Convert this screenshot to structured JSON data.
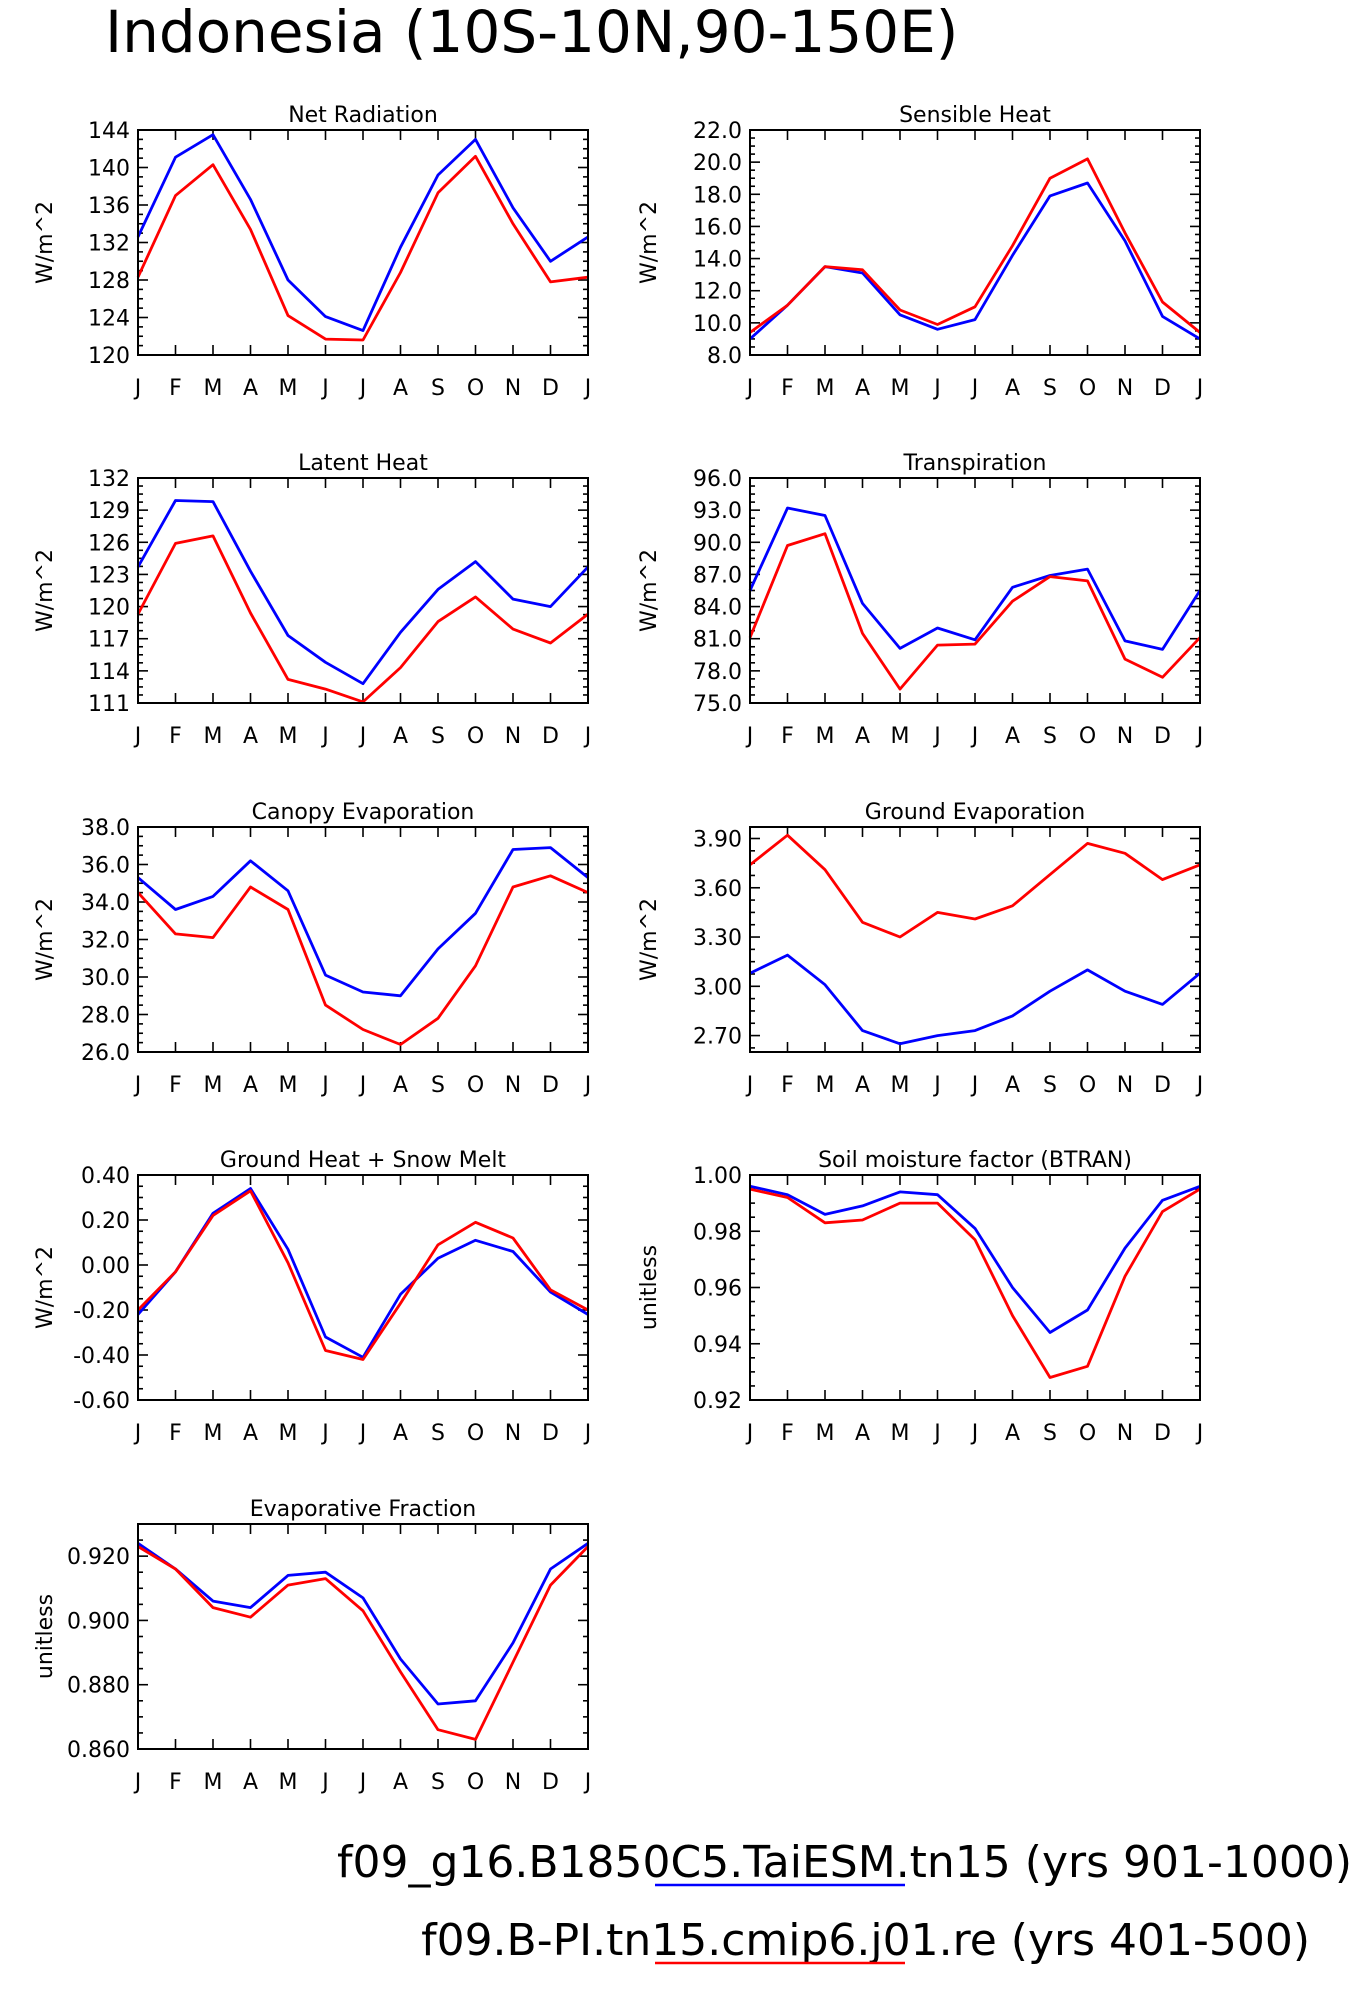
{
  "title": "Indonesia (10S-10N,90-150E)",
  "colors": {
    "blue": "#0000ff",
    "red": "#ff0000"
  },
  "legend": [
    {
      "text": "f09_g16.B1850C5.TaiESM.tn15 (yrs 901-1000)",
      "color": "#0000ff"
    },
    {
      "text": "f09.B-PI.tn15.cmip6.j01.re (yrs 401-500)",
      "color": "#ff0000"
    }
  ],
  "chart_data": [
    {
      "type": "line",
      "title": "Net Radiation",
      "ylabel": "W/m^2",
      "categories": [
        "J",
        "F",
        "M",
        "A",
        "M",
        "J",
        "J",
        "A",
        "S",
        "O",
        "N",
        "D",
        "J"
      ],
      "ylim": [
        120,
        144
      ],
      "yticks": [
        "120",
        "124",
        "128",
        "132",
        "136",
        "140",
        "144"
      ],
      "series": [
        {
          "color": "#0000ff",
          "values": [
            132.6,
            141.1,
            143.5,
            136.6,
            128.0,
            124.1,
            122.6,
            131.5,
            139.2,
            143.0,
            135.7,
            130.0,
            132.6
          ]
        },
        {
          "color": "#ff0000",
          "values": [
            128.3,
            137.0,
            140.3,
            133.4,
            124.2,
            121.7,
            121.6,
            128.8,
            137.3,
            141.2,
            134.0,
            127.8,
            128.3
          ]
        }
      ]
    },
    {
      "type": "line",
      "title": "Sensible Heat",
      "ylabel": "W/m^2",
      "categories": [
        "J",
        "F",
        "M",
        "A",
        "M",
        "J",
        "J",
        "A",
        "S",
        "O",
        "N",
        "D",
        "J"
      ],
      "ylim": [
        8.0,
        22.0
      ],
      "yticks": [
        "8.0",
        "10.0",
        "12.0",
        "14.0",
        "16.0",
        "18.0",
        "20.0",
        "22.0"
      ],
      "series": [
        {
          "color": "#0000ff",
          "values": [
            9.0,
            11.1,
            13.5,
            13.1,
            10.5,
            9.6,
            10.2,
            14.2,
            17.9,
            18.7,
            15.1,
            10.4,
            9.0
          ]
        },
        {
          "color": "#ff0000",
          "values": [
            9.4,
            11.1,
            13.5,
            13.3,
            10.8,
            9.9,
            11.0,
            14.8,
            19.0,
            20.2,
            15.6,
            11.3,
            9.4
          ]
        }
      ]
    },
    {
      "type": "line",
      "title": "Latent Heat",
      "ylabel": "W/m^2",
      "categories": [
        "J",
        "F",
        "M",
        "A",
        "M",
        "J",
        "J",
        "A",
        "S",
        "O",
        "N",
        "D",
        "J"
      ],
      "ylim": [
        111,
        132
      ],
      "yticks": [
        "111",
        "114",
        "117",
        "120",
        "123",
        "126",
        "129",
        "132"
      ],
      "series": [
        {
          "color": "#0000ff",
          "values": [
            123.7,
            129.9,
            129.8,
            123.3,
            117.3,
            114.8,
            112.8,
            117.6,
            121.6,
            124.2,
            120.7,
            120.0,
            123.7
          ]
        },
        {
          "color": "#ff0000",
          "values": [
            119.3,
            125.9,
            126.6,
            119.4,
            113.2,
            112.3,
            111.1,
            114.3,
            118.6,
            120.9,
            117.9,
            116.6,
            119.3
          ]
        }
      ]
    },
    {
      "type": "line",
      "title": "Transpiration",
      "ylabel": "W/m^2",
      "categories": [
        "J",
        "F",
        "M",
        "A",
        "M",
        "J",
        "J",
        "A",
        "S",
        "O",
        "N",
        "D",
        "J"
      ],
      "ylim": [
        75.0,
        96.0
      ],
      "yticks": [
        "75.0",
        "78.0",
        "81.0",
        "84.0",
        "87.0",
        "90.0",
        "93.0",
        "96.0"
      ],
      "series": [
        {
          "color": "#0000ff",
          "values": [
            85.5,
            93.2,
            92.5,
            84.3,
            80.1,
            82.0,
            80.9,
            85.8,
            86.9,
            87.5,
            80.8,
            80.0,
            85.5
          ]
        },
        {
          "color": "#ff0000",
          "values": [
            81.1,
            89.7,
            90.8,
            81.5,
            76.3,
            80.4,
            80.5,
            84.5,
            86.8,
            86.4,
            79.1,
            77.4,
            81.1
          ]
        }
      ]
    },
    {
      "type": "line",
      "title": "Canopy Evaporation",
      "ylabel": "W/m^2",
      "categories": [
        "J",
        "F",
        "M",
        "A",
        "M",
        "J",
        "J",
        "A",
        "S",
        "O",
        "N",
        "D",
        "J"
      ],
      "ylim": [
        26.0,
        38.0
      ],
      "yticks": [
        "26.0",
        "28.0",
        "30.0",
        "32.0",
        "34.0",
        "36.0",
        "38.0"
      ],
      "series": [
        {
          "color": "#0000ff",
          "values": [
            35.3,
            33.6,
            34.3,
            36.2,
            34.6,
            30.1,
            29.2,
            29.0,
            31.5,
            33.4,
            36.8,
            36.9,
            35.3
          ]
        },
        {
          "color": "#ff0000",
          "values": [
            34.5,
            32.3,
            32.1,
            34.8,
            33.6,
            28.5,
            27.2,
            26.4,
            27.8,
            30.6,
            34.8,
            35.4,
            34.5
          ]
        }
      ]
    },
    {
      "type": "line",
      "title": "Ground Evaporation",
      "ylabel": "W/m^2",
      "categories": [
        "J",
        "F",
        "M",
        "A",
        "M",
        "J",
        "J",
        "A",
        "S",
        "O",
        "N",
        "D",
        "J"
      ],
      "ylim": [
        2.6,
        3.97
      ],
      "yticks": [
        "2.70",
        "3.00",
        "3.30",
        "3.60",
        "3.90"
      ],
      "series": [
        {
          "color": "#0000ff",
          "values": [
            3.08,
            3.19,
            3.01,
            2.73,
            2.65,
            2.7,
            2.73,
            2.82,
            2.97,
            3.1,
            2.97,
            2.89,
            3.08
          ]
        },
        {
          "color": "#ff0000",
          "values": [
            3.74,
            3.92,
            3.71,
            3.39,
            3.3,
            3.45,
            3.41,
            3.49,
            3.68,
            3.87,
            3.81,
            3.65,
            3.74
          ]
        }
      ]
    },
    {
      "type": "line",
      "title": "Ground Heat + Snow Melt",
      "ylabel": "W/m^2",
      "categories": [
        "J",
        "F",
        "M",
        "A",
        "M",
        "J",
        "J",
        "A",
        "S",
        "O",
        "N",
        "D",
        "J"
      ],
      "ylim": [
        -0.6,
        0.4
      ],
      "yticks": [
        "-0.60",
        "-0.40",
        "-0.20",
        "0.00",
        "0.20",
        "0.40"
      ],
      "series": [
        {
          "color": "#0000ff",
          "values": [
            -0.22,
            -0.03,
            0.23,
            0.34,
            0.07,
            -0.32,
            -0.41,
            -0.13,
            0.03,
            0.11,
            0.06,
            -0.12,
            -0.22
          ]
        },
        {
          "color": "#ff0000",
          "values": [
            -0.2,
            -0.03,
            0.22,
            0.33,
            0.01,
            -0.38,
            -0.42,
            -0.17,
            0.09,
            0.19,
            0.12,
            -0.11,
            -0.2
          ]
        }
      ]
    },
    {
      "type": "line",
      "title": "Soil moisture factor (BTRAN)",
      "ylabel": "unitless",
      "categories": [
        "J",
        "F",
        "M",
        "A",
        "M",
        "J",
        "J",
        "A",
        "S",
        "O",
        "N",
        "D",
        "J"
      ],
      "ylim": [
        0.92,
        1.0
      ],
      "yticks": [
        "0.92",
        "0.94",
        "0.96",
        "0.98",
        "1.00"
      ],
      "series": [
        {
          "color": "#0000ff",
          "values": [
            0.996,
            0.993,
            0.986,
            0.989,
            0.994,
            0.993,
            0.981,
            0.96,
            0.944,
            0.952,
            0.974,
            0.991,
            0.996
          ]
        },
        {
          "color": "#ff0000",
          "values": [
            0.995,
            0.992,
            0.983,
            0.984,
            0.99,
            0.99,
            0.977,
            0.95,
            0.928,
            0.932,
            0.964,
            0.987,
            0.995
          ]
        }
      ]
    },
    {
      "type": "line",
      "title": "Evaporative Fraction",
      "ylabel": "unitless",
      "categories": [
        "J",
        "F",
        "M",
        "A",
        "M",
        "J",
        "J",
        "A",
        "S",
        "O",
        "N",
        "D",
        "J"
      ],
      "ylim": [
        0.86,
        0.93
      ],
      "yticks": [
        "0.860",
        "0.880",
        "0.900",
        "0.920"
      ],
      "series": [
        {
          "color": "#0000ff",
          "values": [
            0.924,
            0.916,
            0.906,
            0.904,
            0.914,
            0.915,
            0.907,
            0.888,
            0.874,
            0.875,
            0.893,
            0.916,
            0.924
          ]
        },
        {
          "color": "#ff0000",
          "values": [
            0.923,
            0.916,
            0.904,
            0.901,
            0.911,
            0.913,
            0.903,
            0.884,
            0.866,
            0.863,
            0.887,
            0.911,
            0.923
          ]
        }
      ]
    }
  ]
}
